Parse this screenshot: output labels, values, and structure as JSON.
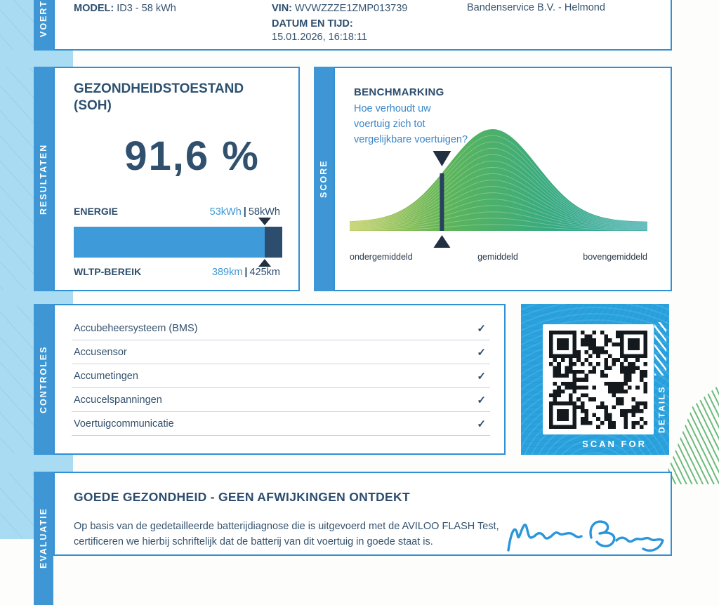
{
  "colors": {
    "accent_blue": "#3e97d4",
    "border_blue": "#2f90d5",
    "qr_block_blue": "#29a2de",
    "margin_light_blue": "#a9dcf3",
    "navy_text": "#2d4d6e",
    "value_blue": "#3e97d4",
    "question_blue": "#3a86c8",
    "bar_light": "#3f9ada",
    "bar_dark": "#2d4d6e",
    "signature_blue": "#2b95da",
    "green_stripes": "#4aa95f",
    "bell_gradient": [
      "#b9c74a",
      "#5ab45c",
      "#3aab7e",
      "#2ba4a4"
    ]
  },
  "vehicle": {
    "tab": "VOERTUIG",
    "model_label": "MODEL:",
    "model_value": "ID3 - 58 kWh",
    "vin_label": "VIN:",
    "vin_value": "WVWZZZE1ZMP013739",
    "datetime_label": "DATUM EN TIJD:",
    "datetime_value": "15.01.2026, 16:18:11",
    "dealer": "Bandenservice B.V. - Helmond"
  },
  "results": {
    "tab": "RESULTATEN",
    "soh_title_line1": "GEZONDHEIDSTOESTAND",
    "soh_title_line2": "(SOH)",
    "soh_value": "91,6 %",
    "energy_label": "ENERGIE",
    "energy_current": "53kWh",
    "divider": "|",
    "energy_total": "58kWh",
    "bar_percent": 91.5,
    "wltp_label": "WLTP-BEREIK",
    "wltp_current": "389km",
    "wltp_total": "425km"
  },
  "score": {
    "tab": "SCORE",
    "title": "BENCHMARKING",
    "question_lines": [
      "Hoe verhoudt uw",
      "voertuig zich tot",
      "vergelijkbare voertuigen?"
    ]
  },
  "chart_data": {
    "type": "area",
    "title": "BENCHMARKING",
    "description": "ridgeline-style normal distribution of comparable vehicles, vehicle marker below average-left of peak",
    "x_labels": [
      "ondergemiddeld",
      "gemiddeld",
      "bovengemiddeld"
    ],
    "peak_x_pct": 48,
    "sigma_pct": 15,
    "marker_x_pct": 31,
    "contour_lines": 15,
    "legend": false,
    "grid": false
  },
  "controls": {
    "tab": "CONTROLES",
    "check_glyph": "✓",
    "items": [
      {
        "label": "Accubeheersysteem (BMS)",
        "checked": true
      },
      {
        "label": "Accusensor",
        "checked": true
      },
      {
        "label": "Accumetingen",
        "checked": true
      },
      {
        "label": "Accucelspanningen",
        "checked": true
      },
      {
        "label": "Voertuigcommunicatie",
        "checked": true
      }
    ]
  },
  "qr": {
    "scan_for": "SCAN FOR",
    "details": "DETAILS"
  },
  "evaluation": {
    "tab": "EVALUATIE",
    "title": "GOEDE GEZONDHEID - GEEN AFWIJKINGEN ONTDEKT",
    "body_line1": "Op basis van de gedetailleerde batterijdiagnose die is uitgevoerd met de AVILOO FLASH Test,",
    "body_line2": "certificeren we hierbij schriftelijk dat de batterij van dit voertuig in goede staat is.",
    "signature_name": "Marcus Berger"
  }
}
